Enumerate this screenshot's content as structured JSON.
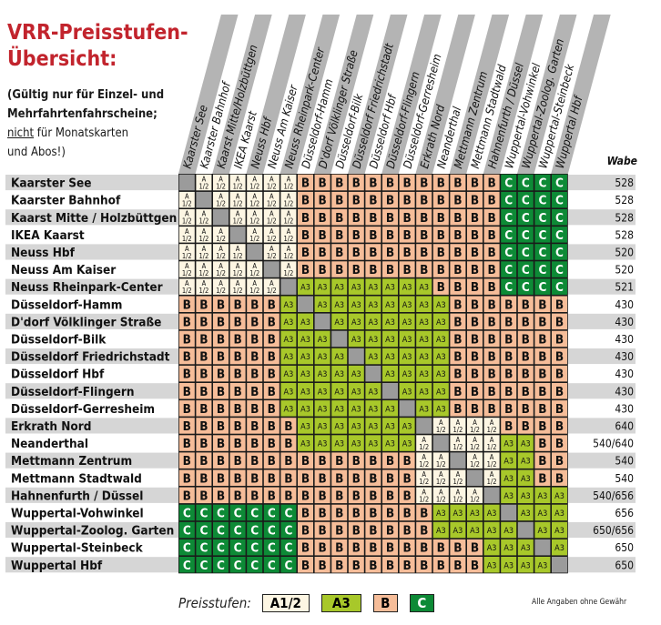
{
  "title": [
    "VRR-Preisstufen-",
    "Übersicht:"
  ],
  "note": {
    "line1": "(Gültig nur für Einzel- und",
    "line2": "Mehrfahrtenfahrscheine;",
    "nicht": "nicht",
    "line3_rest": " für Monatskarten",
    "line4": "und Abos!)"
  },
  "wabe_header": "Wabe",
  "stations": [
    "Kaarster See",
    "Kaarster Bahnhof",
    "Kaarst Mitte / Holzbüttgen",
    "IKEA Kaarst",
    "Neuss Hbf",
    "Neuss Am Kaiser",
    "Neuss Rheinpark-Center",
    "Düsseldorf-Hamm",
    "D'dorf Völklinger Straße",
    "Düsseldorf-Bilk",
    "Düsseldorf Friedrichstadt",
    "Düsseldorf Hbf",
    "Düsseldorf-Flingern",
    "Düsseldorf-Gerresheim",
    "Erkrath Nord",
    "Neanderthal",
    "Mettmann Zentrum",
    "Mettmann Stadtwald",
    "Hahnenfurth / Düssel",
    "Wuppertal-Vohwinkel",
    "Wuppertal-Zoolog. Garten",
    "Wuppertal-Steinbeck",
    "Wuppertal Hbf"
  ],
  "column_labels": [
    "Kaarster See",
    "Kaarster Bahnhof",
    "Kaarst Mitte/Holzbüttgen",
    "IKEA Kaarst",
    "Neuss Hbf",
    "Neuss Am Kaiser",
    "Neuss Rheinpark-Center",
    "Düsseldorf-Hamm",
    "D'dorf Völklinger Straße",
    "Düsseldorf-Bilk",
    "Düsseldorf Friedrichstadt",
    "Düsseldorf Hbf",
    "Düsseldorf-Flingern",
    "Düsseldorf-Gerresheim",
    "Erkrath Nord",
    "Neanderthal",
    "Mettmann Zentrum",
    "Mettmann Stadtwald",
    "Hahnenfurth / Düssel",
    "Wuppertal-Vohwinkel",
    "Wuppertal-Zoolog. Garten",
    "Wuppertal-Steinbeck",
    "Wuppertal Hbf"
  ],
  "waben": [
    "528",
    "528",
    "528",
    "528",
    "520",
    "520",
    "521",
    "430",
    "430",
    "430",
    "430",
    "430",
    "430",
    "430",
    "640",
    "540/640",
    "540",
    "540",
    "540/656",
    "656",
    "650/656",
    "650",
    "650"
  ],
  "matrix": [
    "xAAAAAABBBBBBBBBBBBCCCC",
    "AxAAAAABBBBBBBBBBBBCCCC",
    "AAxAAAABBBBBBBBBBBBCCCC",
    "AAAxAAABBBBBBBBBBBBCCCC",
    "AAAAxAABBBBBBBBBBBBCCCC",
    "AAAAAxABBBBBBBBBBBBCCCC",
    "AAAAAAxGGGGGGGGBBBBCCCC",
    "BBBBBBGxGGGGGGGGBBBBBBB",
    "BBBBBBGGxGGGGGGGBBBBBBB",
    "BBBBBBGGGxGGGGGGBBBBBBB",
    "BBBBBBGGGGxGGGGGBBBBBBB",
    "BBBBBBGGGGGxGGGGBBBBBBB",
    "BBBBBBGGGGGGxGGGBBBBBBB",
    "BBBBBBGGGGGGGxGGBBBBBBB",
    "BBBBBBBGGGGGGGxAAAABBBB",
    "BBBBBBBGGGGGGGAxAAAGGBB",
    "BBBBBBBBBBBBBBAAxAAGGBB",
    "BBBBBBBBBBBBBBAAAxAGGBB",
    "BBBBBBBBBBBBBBAAAAxGGGG",
    "CCCCCCCBBBBBBBBGGGGxGGG",
    "CCCCCCCBBBBBBBBGGGGGxGG",
    "CCCCCCCBBBBBBBBBBBGGGxG",
    "CCCCCCCBBBBBBBBBBBGGGGx"
  ],
  "cell_text": {
    "A_top": "A",
    "A_bottom": "1/2",
    "G": "A3",
    "B": "B",
    "C": "C"
  },
  "legend": {
    "label": "Preisstufen:",
    "items": [
      "A1/2",
      "A3",
      "B",
      "C"
    ]
  },
  "disclaimer": "Alle Angaben ohne Gewähr",
  "colors": {
    "A": "#fdf6e3",
    "G": "#a8c82a",
    "B": "#f6bd99",
    "C": "#0d8a36",
    "diagonal": "#9b9b9b",
    "row_stripe": "#d6d6d6",
    "column_stripe": "#b4b4b4",
    "title": "#c2242d"
  }
}
